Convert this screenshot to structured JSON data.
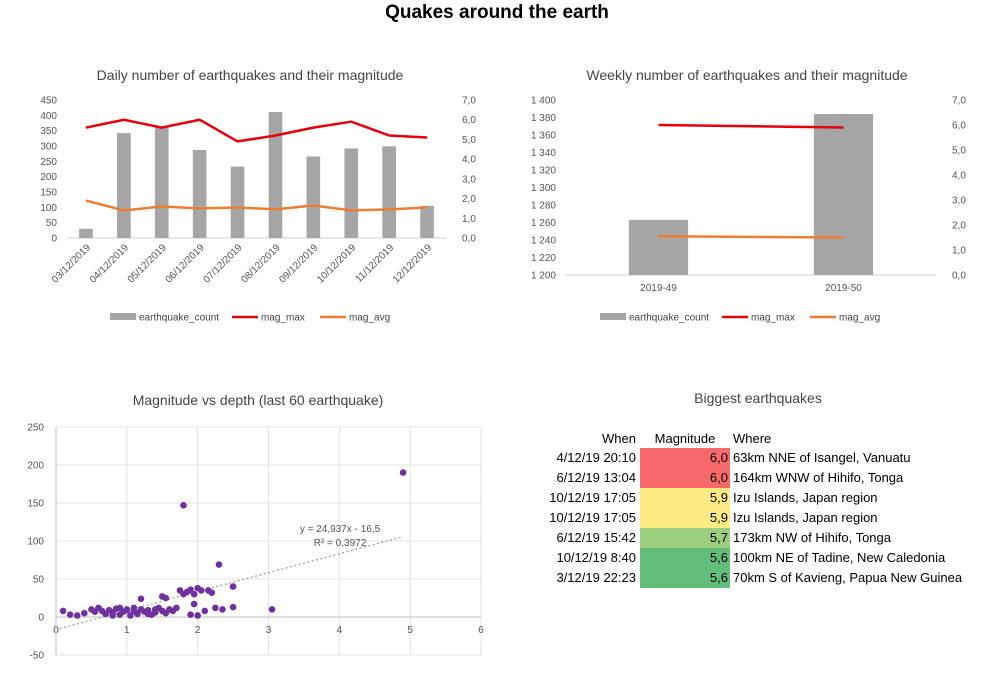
{
  "dashboard": {
    "title": "Quakes around the earth"
  },
  "chart_data": [
    {
      "type": "bar",
      "title": "Daily number of earthquakes and their magnitude",
      "categories": [
        "03/12/2019",
        "04/12/2019",
        "05/12/2019",
        "06/12/2019",
        "07/12/2019",
        "08/12/2019",
        "09/12/2019",
        "10/12/2019",
        "11/12/2019",
        "12/12/2019"
      ],
      "series": [
        {
          "name": "earthquake_count",
          "kind": "bar",
          "axis": "left",
          "color": "#A5A5A5",
          "values": [
            30,
            342,
            360,
            287,
            233,
            411,
            266,
            292,
            299,
            105
          ]
        },
        {
          "name": "mag_max",
          "kind": "line",
          "axis": "right",
          "color": "#E8000B",
          "values": [
            5.6,
            6.0,
            5.6,
            6.0,
            4.9,
            5.2,
            5.6,
            5.9,
            5.2,
            5.1
          ]
        },
        {
          "name": "mag_avg",
          "kind": "line",
          "axis": "right",
          "color": "#ED7D31",
          "values": [
            1.9,
            1.4,
            1.6,
            1.5,
            1.55,
            1.45,
            1.65,
            1.4,
            1.45,
            1.55
          ]
        }
      ],
      "ylim": [
        0,
        450
      ],
      "y_ticks": [
        "0",
        "50",
        "100",
        "150",
        "200",
        "250",
        "300",
        "350",
        "400",
        "450"
      ],
      "y2lim": [
        0,
        7
      ],
      "y2_ticks": [
        "0,0",
        "1,0",
        "2,0",
        "3,0",
        "4,0",
        "5,0",
        "6,0",
        "7,0"
      ],
      "legend": "bottom",
      "grid": false
    },
    {
      "type": "bar",
      "title": "Weekly number of earthquakes and their magnitude",
      "categories": [
        "2019-49",
        "2019-50"
      ],
      "series": [
        {
          "name": "earthquake_count",
          "kind": "bar",
          "axis": "left",
          "color": "#A5A5A5",
          "values": [
            1263,
            1384
          ]
        },
        {
          "name": "mag_max",
          "kind": "line",
          "axis": "right",
          "color": "#E8000B",
          "values": [
            6.0,
            5.9
          ]
        },
        {
          "name": "mag_avg",
          "kind": "line",
          "axis": "right",
          "color": "#ED7D31",
          "values": [
            1.55,
            1.5
          ]
        }
      ],
      "ylim": [
        1200,
        1400
      ],
      "y_ticks": [
        "1 200",
        "1 220",
        "1 240",
        "1 260",
        "1 280",
        "1 300",
        "1 320",
        "1 340",
        "1 360",
        "1 380",
        "1 400"
      ],
      "y2lim": [
        0,
        7
      ],
      "y2_ticks": [
        "0,0",
        "1,0",
        "2,0",
        "3,0",
        "4,0",
        "5,0",
        "6,0",
        "7,0"
      ],
      "legend": "bottom",
      "grid": false
    },
    {
      "type": "scatter",
      "title": "Magnitude vs depth (last 60 earthquake)",
      "color": "#7030A0",
      "xlim": [
        0,
        6
      ],
      "ylim": [
        -50,
        250
      ],
      "x_ticks": [
        "0",
        "1",
        "2",
        "3",
        "4",
        "5",
        "6"
      ],
      "y_ticks": [
        "-50",
        "0",
        "50",
        "100",
        "150",
        "200",
        "250"
      ],
      "grid": true,
      "trendline": {
        "slope": 24.937,
        "intercept": -16.5,
        "x_range": [
          0.05,
          4.9
        ],
        "equation": "y = 24,937x - 16,5",
        "r2": "R² = 0,3972"
      },
      "points": [
        [
          0.1,
          8
        ],
        [
          0.2,
          3
        ],
        [
          0.4,
          5
        ],
        [
          0.5,
          10
        ],
        [
          0.55,
          7
        ],
        [
          0.6,
          12
        ],
        [
          0.7,
          4
        ],
        [
          0.75,
          9
        ],
        [
          0.8,
          6
        ],
        [
          0.85,
          11
        ],
        [
          0.9,
          3
        ],
        [
          0.95,
          7
        ],
        [
          1.0,
          10
        ],
        [
          1.05,
          2
        ],
        [
          1.1,
          8
        ],
        [
          0.9,
          12
        ],
        [
          1.15,
          5
        ],
        [
          1.2,
          24
        ],
        [
          1.2,
          10
        ],
        [
          1.25,
          7
        ],
        [
          1.3,
          9
        ],
        [
          1.35,
          3
        ],
        [
          1.4,
          6
        ],
        [
          1.45,
          12
        ],
        [
          1.5,
          27
        ],
        [
          1.55,
          25
        ],
        [
          1.55,
          5
        ],
        [
          1.6,
          10
        ],
        [
          1.65,
          8
        ],
        [
          1.75,
          35
        ],
        [
          1.8,
          30
        ],
        [
          1.85,
          33
        ],
        [
          1.9,
          36
        ],
        [
          1.95,
          30
        ],
        [
          2.0,
          38
        ],
        [
          1.95,
          17
        ],
        [
          2.0,
          2
        ],
        [
          1.9,
          3
        ],
        [
          2.1,
          8
        ],
        [
          2.15,
          35
        ],
        [
          2.2,
          32
        ],
        [
          2.25,
          12
        ],
        [
          2.3,
          69
        ],
        [
          2.35,
          10
        ],
        [
          2.5,
          40
        ],
        [
          2.5,
          13
        ],
        [
          3.05,
          10
        ],
        [
          1.8,
          147
        ],
        [
          4.9,
          190
        ],
        [
          1.0,
          9
        ],
        [
          0.65,
          8
        ],
        [
          1.15,
          4
        ],
        [
          1.7,
          12
        ],
        [
          1.3,
          4
        ],
        [
          0.8,
          2
        ],
        [
          1.4,
          10
        ],
        [
          1.1,
          12
        ],
        [
          2.05,
          35
        ],
        [
          0.3,
          2
        ],
        [
          1.5,
          8
        ]
      ]
    }
  ],
  "quake_table": {
    "title": "Biggest earthquakes",
    "headers": [
      "When",
      "Magnitude",
      "Where"
    ],
    "rows": [
      {
        "when": "4/12/19 20:10",
        "magnitude": "6,0",
        "where": "63km NNE of Isangel, Vanuatu",
        "color": "#F8696B"
      },
      {
        "when": "6/12/19 13:04",
        "magnitude": "6,0",
        "where": "164km WNW of Hihifo, Tonga",
        "color": "#F8696B"
      },
      {
        "when": "10/12/19 17:05",
        "magnitude": "5,9",
        "where": "Izu Islands, Japan region",
        "color": "#FFEB84"
      },
      {
        "when": "10/12/19 17:05",
        "magnitude": "5,9",
        "where": "Izu Islands, Japan region",
        "color": "#FFEB84"
      },
      {
        "when": "6/12/19 15:42",
        "magnitude": "5,7",
        "where": "173km NW of Hihifo, Tonga",
        "color": "#9BCF7D"
      },
      {
        "when": "10/12/19 8:40",
        "magnitude": "5,6",
        "where": "100km NE of Tadine, New Caledonia",
        "color": "#63BE7B"
      },
      {
        "when": "3/12/19 22:23",
        "magnitude": "5,6",
        "where": "70km S of Kavieng, Papua New Guinea",
        "color": "#63BE7B"
      }
    ]
  }
}
